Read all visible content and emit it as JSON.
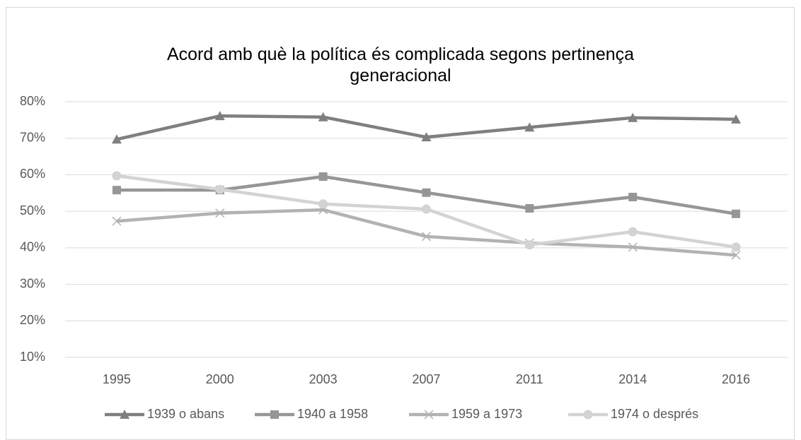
{
  "chart_data": {
    "type": "line",
    "title": "Acord amb què la política és complicada segons pertinença generacional",
    "categories": [
      "1995",
      "2000",
      "2003",
      "2007",
      "2011",
      "2014",
      "2016"
    ],
    "series": [
      {
        "name": "1939 o abans",
        "color": "#7f7f7f",
        "marker": "triangle",
        "values": [
          69.7,
          76.1,
          75.8,
          70.3,
          73.0,
          75.6,
          75.2
        ]
      },
      {
        "name": "1940 a 1958",
        "color": "#969696",
        "marker": "square",
        "values": [
          55.8,
          55.8,
          59.5,
          55.1,
          50.8,
          53.9,
          49.3
        ]
      },
      {
        "name": "1959 a 1973",
        "color": "#b2b2b2",
        "marker": "x",
        "values": [
          47.3,
          49.5,
          50.4,
          43.1,
          41.3,
          40.2,
          38.0
        ]
      },
      {
        "name": "1974 o després",
        "color": "#d3d3d3",
        "marker": "circle",
        "values": [
          59.7,
          56.0,
          52.0,
          50.6,
          40.8,
          44.4,
          40.2
        ]
      }
    ],
    "ylim": [
      10,
      80
    ],
    "yticks": [
      {
        "value": 10,
        "label": "10%"
      },
      {
        "value": 20,
        "label": "20%"
      },
      {
        "value": 30,
        "label": "30%"
      },
      {
        "value": 40,
        "label": "40%"
      },
      {
        "value": 50,
        "label": "50%"
      },
      {
        "value": 60,
        "label": "60%"
      },
      {
        "value": 70,
        "label": "70%"
      },
      {
        "value": 80,
        "label": "80%"
      }
    ],
    "grid": true,
    "legend": "bottom"
  }
}
